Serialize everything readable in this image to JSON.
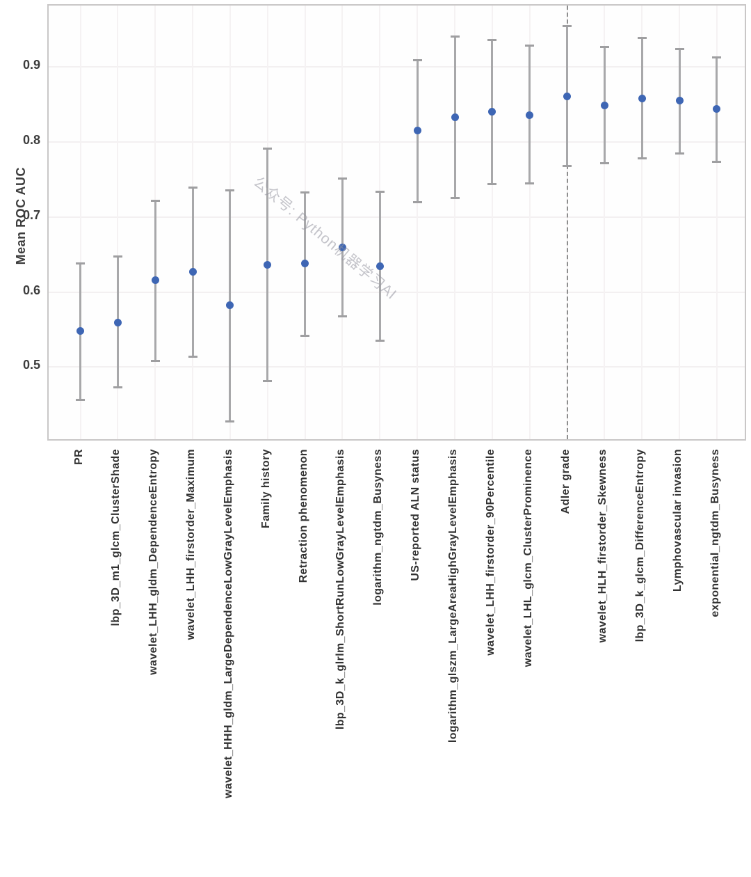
{
  "colors": {
    "point": "#3e66b4",
    "error_bar": "#a8a8aa",
    "reference_line": "#8e8e8e",
    "grid": "#f3f0f1",
    "spine": "#c9c7c7",
    "tick_text": "#3c3c3c",
    "watermark": "#94939e"
  },
  "chart_data": {
    "type": "scatter",
    "title": "",
    "xlabel": "",
    "ylabel": "Mean ROC AUC",
    "watermark": "公众号: Python机器学习AI",
    "grid": true,
    "ylim": [
      0.4,
      0.982
    ],
    "yticks": [
      0.5,
      0.6,
      0.7,
      0.8,
      0.9
    ],
    "x_tick_rotation_deg": 90,
    "reference_line": {
      "category": "Adler grade",
      "style": "dashed",
      "orientation": "vertical"
    },
    "categories": [
      "PR",
      "lbp_3D_m1_glcm_ClusterShade",
      "wavelet_LHH_gldm_DependenceEntropy",
      "wavelet_LHH_firstorder_Maximum",
      "wavelet_HHH_gldm_LargeDependenceLowGrayLevelEmphasis",
      "Family history",
      "Retraction phenomenon",
      "lbp_3D_k_glrlm_ShortRunLowGrayLevelEmphasis",
      "logarithm_ngtdm_Busyness",
      "US-reported ALN status",
      "logarithm_glszm_LargeAreaHighGrayLevelEmphasis",
      "wavelet_LHH_firstorder_90Percentile",
      "wavelet_LHL_glcm_ClusterProminence",
      "Adler grade",
      "wavelet_HLH_firstorder_Skewness",
      "lbp_3D_k_glcm_DifferenceEntropy",
      "Lymphovascular invasion",
      "exponential_ngtdm_Busyness"
    ],
    "series": [
      {
        "name": "Mean ROC AUC",
        "means": [
          0.548,
          0.559,
          0.616,
          0.627,
          0.582,
          0.636,
          0.638,
          0.659,
          0.634,
          0.815,
          0.833,
          0.84,
          0.836,
          0.861,
          0.849,
          0.858,
          0.855,
          0.844
        ],
        "ci_lower": [
          0.456,
          0.473,
          0.508,
          0.514,
          0.427,
          0.481,
          0.542,
          0.568,
          0.535,
          0.72,
          0.725,
          0.744,
          0.745,
          0.768,
          0.772,
          0.778,
          0.785,
          0.774
        ],
        "ci_upper": [
          0.638,
          0.647,
          0.722,
          0.739,
          0.736,
          0.791,
          0.733,
          0.751,
          0.734,
          0.909,
          0.941,
          0.936,
          0.929,
          0.955,
          0.927,
          0.939,
          0.924,
          0.913
        ]
      }
    ]
  }
}
